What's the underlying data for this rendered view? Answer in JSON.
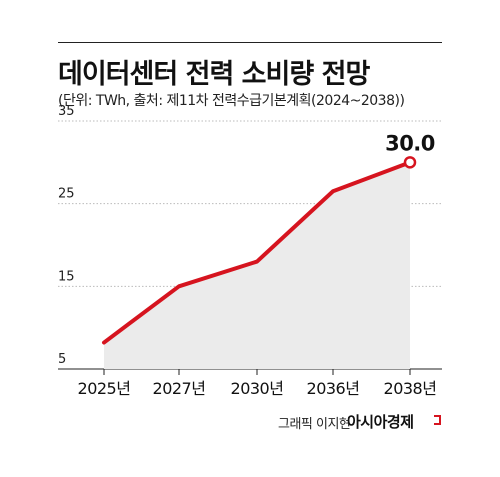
{
  "title": "데이터센터 전력 소비량 전망",
  "subtitle": "(단위: TWh, 출처: 제11차 전력수급기본계획(2024~2038))",
  "chart_data": {
    "type": "area",
    "categories": [
      "2025년",
      "2027년",
      "2030년",
      "2036년",
      "2038년"
    ],
    "values": [
      8.2,
      15,
      18,
      26.5,
      30.0
    ],
    "yticks": [
      5,
      15,
      25,
      35
    ],
    "ytick_labels": [
      "5",
      "15",
      "25",
      "35"
    ],
    "ylim": [
      5,
      35
    ],
    "grid": true,
    "highlight_label": "30.0",
    "line_color": "#d6141f",
    "fill_color": "#ebebeb"
  },
  "credit": {
    "author": "그래픽 이지현",
    "brand": "아시아경제"
  }
}
